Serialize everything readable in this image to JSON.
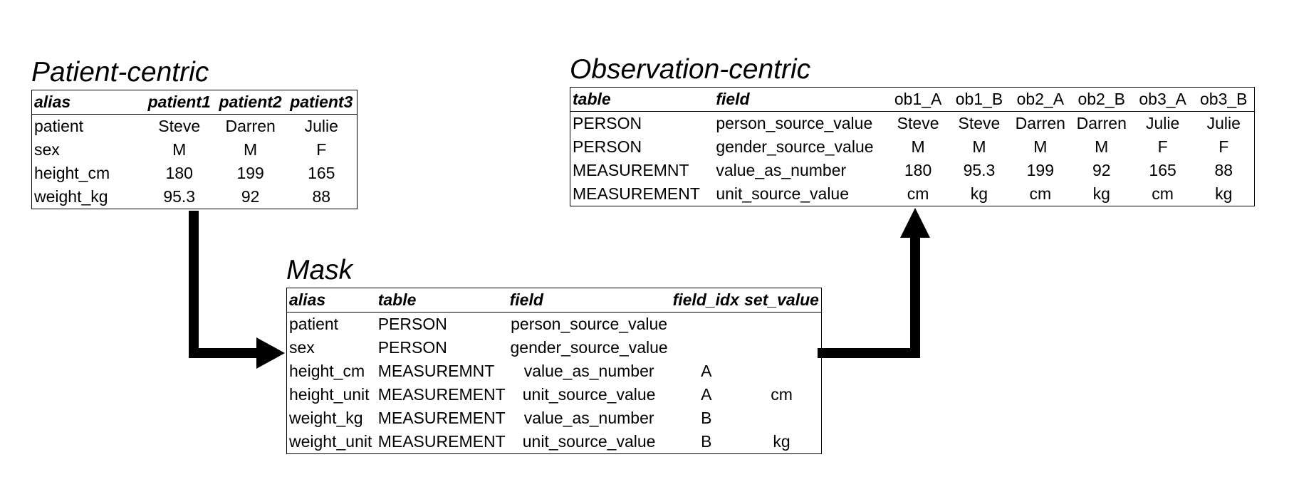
{
  "patient_centric": {
    "title": "Patient-centric",
    "columns": [
      "alias",
      "patient1",
      "patient2",
      "patient3"
    ],
    "rows": [
      [
        "patient",
        "Steve",
        "Darren",
        "Julie"
      ],
      [
        "sex",
        "M",
        "M",
        "F"
      ],
      [
        "height_cm",
        "180",
        "199",
        "165"
      ],
      [
        "weight_kg",
        "95.3",
        "92",
        "88"
      ]
    ]
  },
  "observation_centric": {
    "title": "Observation-centric",
    "columns": [
      "table",
      "field",
      "ob1_A",
      "ob1_B",
      "ob2_A",
      "ob2_B",
      "ob3_A",
      "ob3_B"
    ],
    "rows": [
      [
        "PERSON",
        "person_source_value",
        "Steve",
        "Steve",
        "Darren",
        "Darren",
        "Julie",
        "Julie"
      ],
      [
        "PERSON",
        "gender_source_value",
        "M",
        "M",
        "M",
        "M",
        "F",
        "F"
      ],
      [
        "MEASUREMNT",
        "value_as_number",
        "180",
        "95.3",
        "199",
        "92",
        "165",
        "88"
      ],
      [
        "MEASUREMENT",
        "unit_source_value",
        "cm",
        "kg",
        "cm",
        "kg",
        "cm",
        "kg"
      ]
    ]
  },
  "mask": {
    "title": "Mask",
    "columns": [
      "alias",
      "table",
      "field",
      "field_idx",
      "set_value"
    ],
    "rows": [
      [
        "patient",
        "PERSON",
        "person_source_value",
        "",
        ""
      ],
      [
        "sex",
        "PERSON",
        "gender_source_value",
        "",
        ""
      ],
      [
        "height_cm",
        "MEASUREMNT",
        "value_as_number",
        "A",
        ""
      ],
      [
        "height_unit",
        "MEASUREMENT",
        "unit_source_value",
        "A",
        "cm"
      ],
      [
        "weight_kg",
        "MEASUREMENT",
        "value_as_number",
        "B",
        ""
      ],
      [
        "weight_unit",
        "MEASUREMENT",
        "unit_source_value",
        "B",
        "kg"
      ]
    ]
  }
}
